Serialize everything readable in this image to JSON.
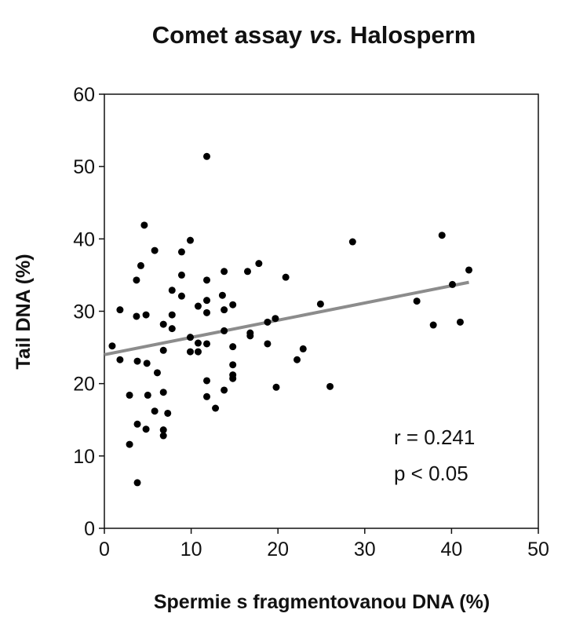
{
  "chart_data": {
    "type": "scatter",
    "title": [
      "Comet assay",
      "vs.",
      "Halosperm"
    ],
    "x_label": "Spermie s fragmentovanou DNA (%)",
    "y_label": "Tail DNA (%)",
    "annotations": [
      "r = 0.241",
      "p < 0.05"
    ],
    "xlim": [
      0,
      50
    ],
    "xticks": [
      0,
      10,
      20,
      30,
      40,
      50
    ],
    "ylim": [
      0,
      60
    ],
    "yticks": [
      0,
      10,
      20,
      30,
      40,
      50,
      60
    ],
    "grid": false,
    "series": [
      {
        "color": "#000000",
        "x": [
          0.9,
          1.8,
          1.8,
          2.9,
          2.9,
          4.6,
          4.2,
          3.7,
          3.7,
          4.8,
          3.8,
          4.9,
          3.8,
          4.8,
          5.0,
          3.8,
          5.8,
          6.1,
          5.8,
          6.8,
          6.8,
          6.8,
          6.8,
          6.8,
          7.3,
          7.8,
          7.8,
          7.8,
          8.9,
          8.9,
          8.9,
          9.9,
          9.9,
          9.9,
          10.8,
          10.8,
          10.8,
          11.8,
          11.8,
          11.8,
          11.8,
          11.8,
          11.8,
          11.8,
          12.8,
          13.6,
          13.8,
          13.8,
          13.8,
          13.8,
          14.8,
          14.8,
          14.8,
          14.8,
          14.8,
          16.5,
          16.8,
          16.8,
          17.8,
          18.8,
          18.8,
          19.7,
          19.8,
          20.9,
          22.2,
          22.9,
          24.9,
          26.0,
          28.6,
          36.0,
          37.9,
          38.9,
          40.1,
          41.0,
          42.0
        ],
        "values": [
          25.2,
          30.2,
          23.3,
          18.4,
          11.6,
          41.9,
          36.3,
          34.3,
          29.3,
          29.5,
          23.1,
          22.8,
          14.4,
          13.7,
          18.4,
          6.3,
          38.4,
          21.5,
          16.2,
          28.2,
          24.6,
          18.8,
          13.6,
          12.8,
          15.9,
          32.9,
          29.5,
          27.6,
          38.2,
          35.0,
          32.1,
          39.8,
          26.4,
          24.4,
          30.7,
          25.6,
          24.4,
          51.4,
          34.3,
          31.5,
          29.8,
          25.5,
          20.4,
          18.2,
          16.6,
          32.2,
          35.5,
          30.2,
          27.3,
          19.1,
          30.9,
          25.1,
          22.6,
          21.2,
          20.7,
          35.5,
          27.0,
          26.6,
          36.6,
          28.5,
          25.5,
          29.0,
          19.5,
          34.7,
          23.3,
          24.8,
          31.0,
          19.6,
          39.6,
          31.4,
          28.1,
          40.5,
          33.7,
          28.5,
          35.7
        ]
      }
    ],
    "trendline": {
      "color": "#8c8c8c",
      "x": [
        0,
        42
      ],
      "values": [
        24,
        34
      ]
    }
  }
}
